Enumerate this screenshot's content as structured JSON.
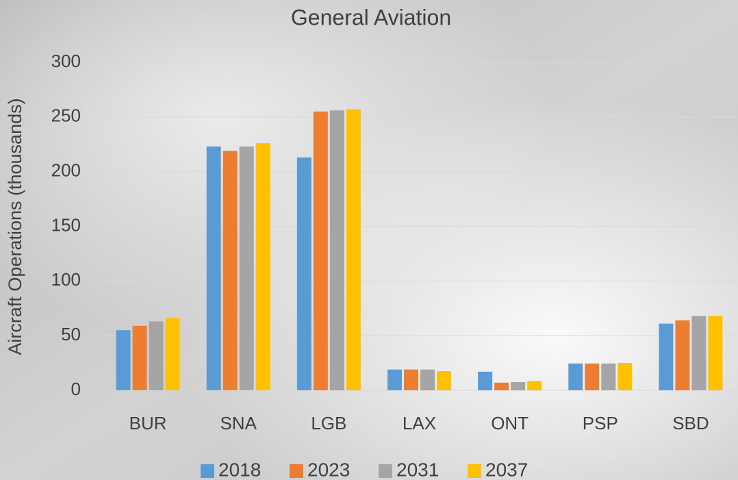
{
  "chart_data": {
    "type": "bar",
    "title": "General Aviation",
    "y_label": "Aircraft Operations (thousands)",
    "categories": [
      "BUR",
      "SNA",
      "LGB",
      "LAX",
      "ONT",
      "PSP",
      "SBD"
    ],
    "series": [
      {
        "name": "2018",
        "color": "#5b9bd5",
        "values": [
          55,
          223,
          213,
          19,
          17,
          24.5,
          61
        ]
      },
      {
        "name": "2023",
        "color": "#ed7d31",
        "values": [
          59,
          219,
          255,
          19,
          7,
          24.5,
          64
        ]
      },
      {
        "name": "2031",
        "color": "#a5a5a5",
        "values": [
          63,
          223,
          256,
          19,
          7.5,
          24.5,
          68
        ]
      },
      {
        "name": "2037",
        "color": "#ffc000",
        "values": [
          66,
          226,
          257,
          17.5,
          8.5,
          25,
          68
        ]
      }
    ],
    "ylim": [
      0,
      300
    ],
    "yticks": [
      0,
      50,
      100,
      150,
      200,
      250,
      300
    ],
    "grid": true,
    "legend": "bottom"
  }
}
